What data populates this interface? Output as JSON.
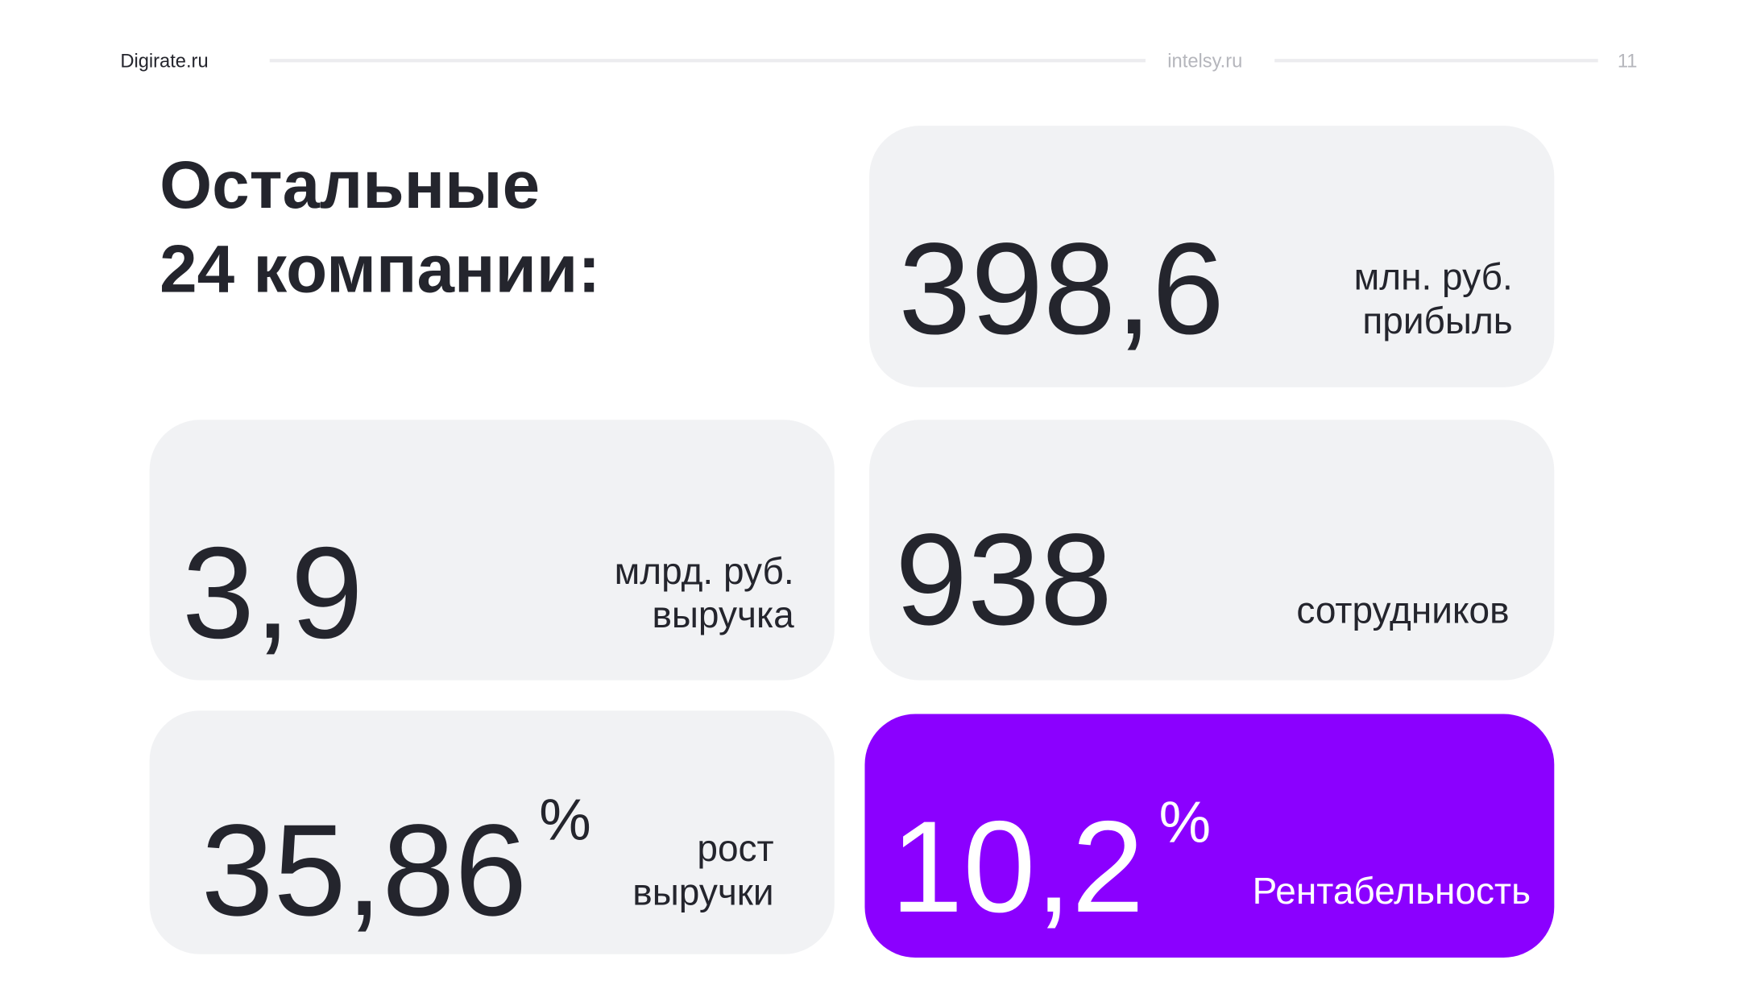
{
  "header": {
    "left": "Digirate.ru",
    "center": "intelsy.ru",
    "page": "11"
  },
  "title": [
    "Остальные",
    "24 компании:"
  ],
  "cards": [
    {
      "value": "398,6",
      "label": [
        "млн. руб.",
        "прибыль"
      ]
    },
    {
      "value": "3,9",
      "label": [
        "млрд. руб.",
        "выручка"
      ]
    },
    {
      "value": "938",
      "label": [
        "сотрудников"
      ]
    },
    {
      "value": "35,86",
      "suffix": "%",
      "label": [
        "рост",
        "выручки"
      ]
    },
    {
      "value": "10,2",
      "suffix": "%",
      "label": [
        "Рентабельность"
      ]
    }
  ]
}
